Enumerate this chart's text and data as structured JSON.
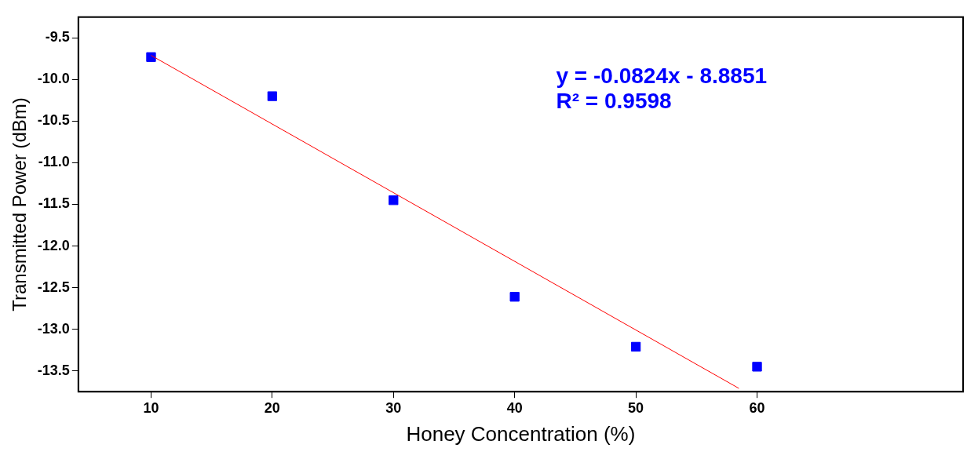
{
  "chart_data": {
    "type": "scatter",
    "xlabel": "Honey Concentration (%)",
    "ylabel": "Transmitted Power (dBm)",
    "series": [
      {
        "type": "scatter",
        "color": "#0000ff",
        "x": [
          10,
          20,
          30,
          40,
          50,
          60
        ],
        "values": [
          -9.73,
          -10.2,
          -11.45,
          -12.61,
          -13.21,
          -13.45
        ],
        "marker": "square"
      },
      {
        "type": "line",
        "color": "#ff0000",
        "x": [
          10,
          58.5
        ],
        "values": [
          -9.71,
          -13.71
        ],
        "marker": "none"
      }
    ],
    "xlim": [
      4,
      77
    ],
    "xticks": [
      10,
      20,
      30,
      40,
      50,
      60
    ],
    "ylim": [
      -13.75,
      -9.25
    ],
    "yticks": [
      {
        "value": -9.5,
        "label": "-9.5"
      },
      {
        "value": -10,
        "label": "-10.0"
      },
      {
        "value": -10.5,
        "label": "-10.5"
      },
      {
        "value": -11,
        "label": "-11.0"
      },
      {
        "value": -11.5,
        "label": "-11.5"
      },
      {
        "value": -12,
        "label": "-12.0"
      },
      {
        "value": -12.5,
        "label": "-12.5"
      },
      {
        "value": -13,
        "label": "-13.0"
      },
      {
        "value": -13.5,
        "label": "-13.5"
      }
    ],
    "annotations": [
      "y = -0.0824x - 8.8851",
      "R² = 0.9598"
    ],
    "grid": false,
    "legend": false
  }
}
